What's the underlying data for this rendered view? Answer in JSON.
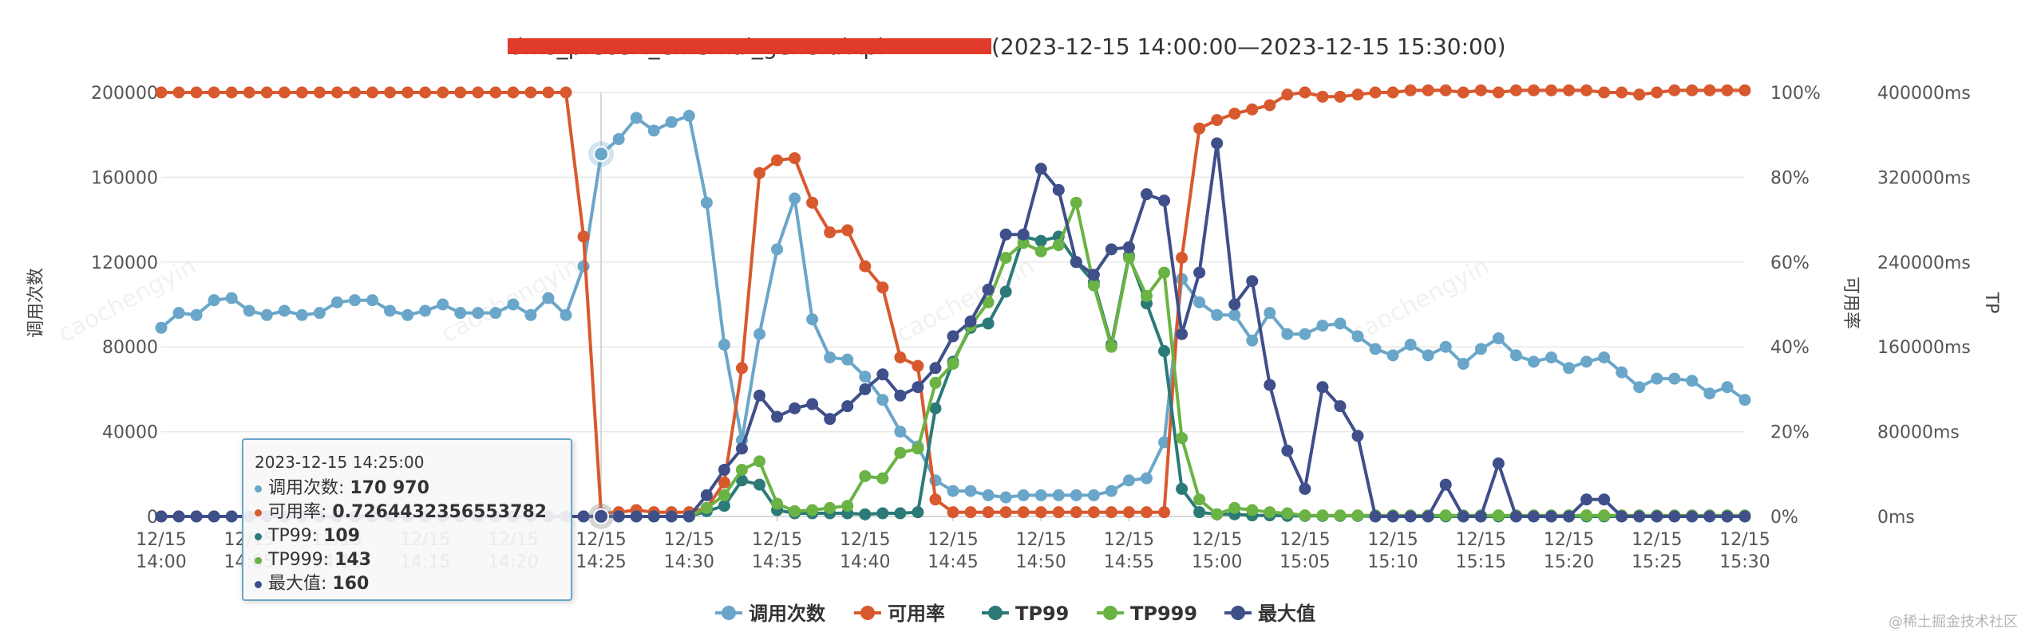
{
  "header": {
    "title_api_redacted": "dms_precert_external_generalApi",
    "title_range": "(2023-12-15 14:00:00—2023-12-15 15:30:00)"
  },
  "axes": {
    "left_title": "调用次数",
    "right1_title": "可用率",
    "right2_title": "TP"
  },
  "watermark": "caochengyin",
  "credit": "@稀土掘金技术社区",
  "colors": {
    "calls": "#6aa6c9",
    "avail": "#d9592f",
    "tp99": "#2c7a78",
    "tp999": "#6ab344",
    "max": "#3f4f8a",
    "redact": "#e03a2a"
  },
  "tooltip": {
    "time": "2023-12-15 14:25:00",
    "rows": [
      {
        "label": "调用次数: ",
        "value": "170 970"
      },
      {
        "label": "可用率: ",
        "value": "0.7264432356553782"
      },
      {
        "label": "TP99: ",
        "value": "109"
      },
      {
        "label": "TP999: ",
        "value": "143"
      },
      {
        "label": "最大值: ",
        "value": "160"
      }
    ]
  },
  "chart_data": {
    "type": "line",
    "title": "dms_precert_external_generalApi(2023-12-15 14:00:00—2023-12-15 15:30:00)",
    "x_tick_labels": [
      [
        "12/15",
        "14:00"
      ],
      [
        "12/15",
        "14:05"
      ],
      [
        "12/15",
        "14:10"
      ],
      [
        "12/15",
        "14:15"
      ],
      [
        "12/15",
        "14:20"
      ],
      [
        "12/15",
        "14:25"
      ],
      [
        "12/15",
        "14:30"
      ],
      [
        "12/15",
        "14:35"
      ],
      [
        "12/15",
        "14:40"
      ],
      [
        "12/15",
        "14:45"
      ],
      [
        "12/15",
        "14:50"
      ],
      [
        "12/15",
        "14:55"
      ],
      [
        "12/15",
        "15:00"
      ],
      [
        "12/15",
        "15:05"
      ],
      [
        "12/15",
        "15:10"
      ],
      [
        "12/15",
        "15:15"
      ],
      [
        "12/15",
        "15:20"
      ],
      [
        "12/15",
        "15:25"
      ],
      [
        "12/15",
        "15:30"
      ]
    ],
    "x_range_minutes": [
      0,
      90
    ],
    "left_axis": {
      "title": "调用次数",
      "range": [
        0,
        200000
      ],
      "ticks": [
        "0",
        "40000",
        "80000",
        "120000",
        "160000",
        "200000"
      ]
    },
    "right_axis_1": {
      "title": "可用率",
      "range": [
        0,
        100
      ],
      "ticks": [
        "0%",
        "20%",
        "40%",
        "60%",
        "80%",
        "100%"
      ]
    },
    "right_axis_2": {
      "title": "TP",
      "range": [
        0,
        400000
      ],
      "ticks": [
        "0ms",
        "80000ms",
        "160000ms",
        "240000ms",
        "320000ms",
        "400000ms"
      ]
    },
    "x_minutes": [
      0,
      1,
      2,
      3,
      4,
      5,
      6,
      7,
      8,
      9,
      10,
      11,
      12,
      13,
      14,
      15,
      16,
      17,
      18,
      19,
      20,
      21,
      22,
      23,
      24,
      25,
      26,
      27,
      28,
      29,
      30,
      31,
      32,
      33,
      34,
      35,
      36,
      37,
      38,
      39,
      40,
      41,
      42,
      43,
      44,
      45,
      46,
      47,
      48,
      49,
      50,
      51,
      52,
      53,
      54,
      55,
      56,
      57,
      58,
      59,
      60,
      61,
      62,
      63,
      64,
      65,
      66,
      67,
      68,
      69,
      70,
      71,
      72,
      73,
      74,
      75,
      76,
      77,
      78,
      79,
      80,
      81,
      82,
      83,
      84,
      85,
      86,
      87,
      88,
      89,
      90
    ],
    "series": [
      {
        "name": "调用次数",
        "axis": "left",
        "color": "#6aa6c9",
        "values": [
          89000,
          96000,
          95000,
          102000,
          103000,
          97000,
          95000,
          97000,
          95000,
          96000,
          101000,
          102000,
          102000,
          97000,
          95000,
          97000,
          100000,
          96000,
          96000,
          96000,
          100000,
          95000,
          103000,
          95000,
          118000,
          170970,
          178000,
          188000,
          182000,
          186000,
          189000,
          148000,
          81000,
          36000,
          86000,
          126000,
          150000,
          93000,
          75000,
          74000,
          66000,
          55000,
          40000,
          33000,
          17000,
          12000,
          12000,
          10000,
          9000,
          10000,
          10000,
          10000,
          10000,
          10000,
          12000,
          17000,
          18000,
          35000,
          112000,
          101000,
          95000,
          95000,
          83000,
          96000,
          86000,
          86000,
          90000,
          91000,
          85000,
          79000,
          76000,
          81000,
          76000,
          80000,
          72000,
          79000,
          84000,
          76000,
          73000,
          75000,
          70000,
          73000,
          75000,
          68000,
          61000,
          65000,
          65000,
          64000,
          58000,
          61000,
          55000
        ]
      },
      {
        "name": "可用率",
        "axis": "right1",
        "color": "#d9592f",
        "values": [
          100,
          100,
          100,
          100,
          100,
          100,
          100,
          100,
          100,
          100,
          100,
          100,
          100,
          100,
          100,
          100,
          100,
          100,
          100,
          100,
          100,
          100,
          100,
          100,
          66,
          0.7264432356553782,
          1,
          1.5,
          1,
          1,
          1,
          2,
          8,
          35,
          81,
          84,
          84.5,
          74,
          67,
          67.5,
          59,
          54,
          37.5,
          35.5,
          4,
          1,
          1,
          1,
          1,
          1,
          1,
          1,
          1,
          1,
          1,
          1,
          1,
          1,
          61,
          91.5,
          93.5,
          95,
          96,
          97,
          99.5,
          100,
          99,
          99,
          99.5,
          100,
          100,
          100.5,
          100.5,
          100.5,
          100,
          100.5,
          100,
          100.5,
          100.5,
          100.5,
          100.5,
          100.5,
          100,
          100,
          99.5,
          100,
          100.5,
          100.5,
          100.5,
          100.5,
          100.5
        ]
      },
      {
        "name": "TP99",
        "axis": "right2",
        "color": "#2c7a78",
        "values": [
          0,
          0,
          0,
          0,
          0,
          0,
          0,
          0,
          0,
          0,
          0,
          0,
          0,
          0,
          0,
          0,
          0,
          0,
          0,
          0,
          0,
          0,
          0,
          0,
          0,
          109,
          0,
          0,
          0,
          0,
          0,
          5000,
          10000,
          34000,
          30000,
          6000,
          3000,
          3000,
          3000,
          3000,
          2000,
          3000,
          3000,
          4000,
          102000,
          146000,
          178000,
          182000,
          212000,
          264000,
          260000,
          264000,
          240000,
          221000,
          162000,
          246000,
          201000,
          156000,
          26000,
          4000,
          2000,
          2000,
          1000,
          1000,
          500,
          500,
          500,
          500,
          500,
          0,
          0,
          0,
          0,
          0,
          0,
          0,
          0,
          0,
          0,
          0,
          0,
          0,
          0,
          0,
          0,
          0,
          0,
          0,
          0,
          0,
          0
        ]
      },
      {
        "name": "TP999",
        "axis": "right2",
        "color": "#6ab344",
        "values": [
          0,
          0,
          0,
          0,
          0,
          0,
          0,
          0,
          0,
          0,
          0,
          0,
          0,
          0,
          0,
          0,
          0,
          0,
          0,
          0,
          0,
          0,
          0,
          0,
          0,
          143,
          0,
          0,
          0,
          0,
          0,
          8000,
          20000,
          44000,
          52000,
          12000,
          5000,
          6000,
          8000,
          10000,
          38000,
          36000,
          60000,
          64000,
          126000,
          144000,
          180000,
          202000,
          244000,
          258000,
          250000,
          256000,
          296000,
          218000,
          160000,
          244000,
          208000,
          230000,
          74000,
          16000,
          2000,
          8000,
          6000,
          4000,
          3000,
          1000,
          1000,
          1000,
          1000,
          1000,
          1000,
          1000,
          1000,
          1000,
          1000,
          1000,
          1000,
          1000,
          1000,
          1000,
          1000,
          1000,
          1000,
          1000,
          1000,
          1000,
          1000,
          1000,
          1000,
          1000,
          1000
        ]
      },
      {
        "name": "最大值",
        "axis": "right2",
        "color": "#3f4f8a",
        "values": [
          0,
          0,
          0,
          0,
          0,
          0,
          0,
          0,
          0,
          0,
          0,
          0,
          0,
          0,
          0,
          0,
          0,
          0,
          0,
          0,
          0,
          0,
          0,
          0,
          0,
          160,
          0,
          0,
          0,
          0,
          0,
          20000,
          44000,
          64000,
          114000,
          94000,
          102000,
          106000,
          92000,
          104000,
          120000,
          134000,
          114000,
          122000,
          140000,
          170000,
          184000,
          214000,
          266000,
          266000,
          328000,
          308000,
          240000,
          228000,
          252000,
          254000,
          304000,
          298000,
          172000,
          230000,
          352000,
          200000,
          222000,
          124000,
          62000,
          26000,
          122000,
          104000,
          76000,
          0,
          0,
          0,
          0,
          30000,
          0,
          0,
          50000,
          0,
          0,
          0,
          0,
          16000,
          16000,
          0,
          0,
          0,
          0,
          0,
          0,
          0,
          0
        ]
      }
    ],
    "legend": [
      "调用次数",
      "可用率",
      "TP99",
      "TP999",
      "最大值"
    ],
    "legend_position": "bottom-center",
    "grid": true,
    "crosshair_minute": 25
  }
}
